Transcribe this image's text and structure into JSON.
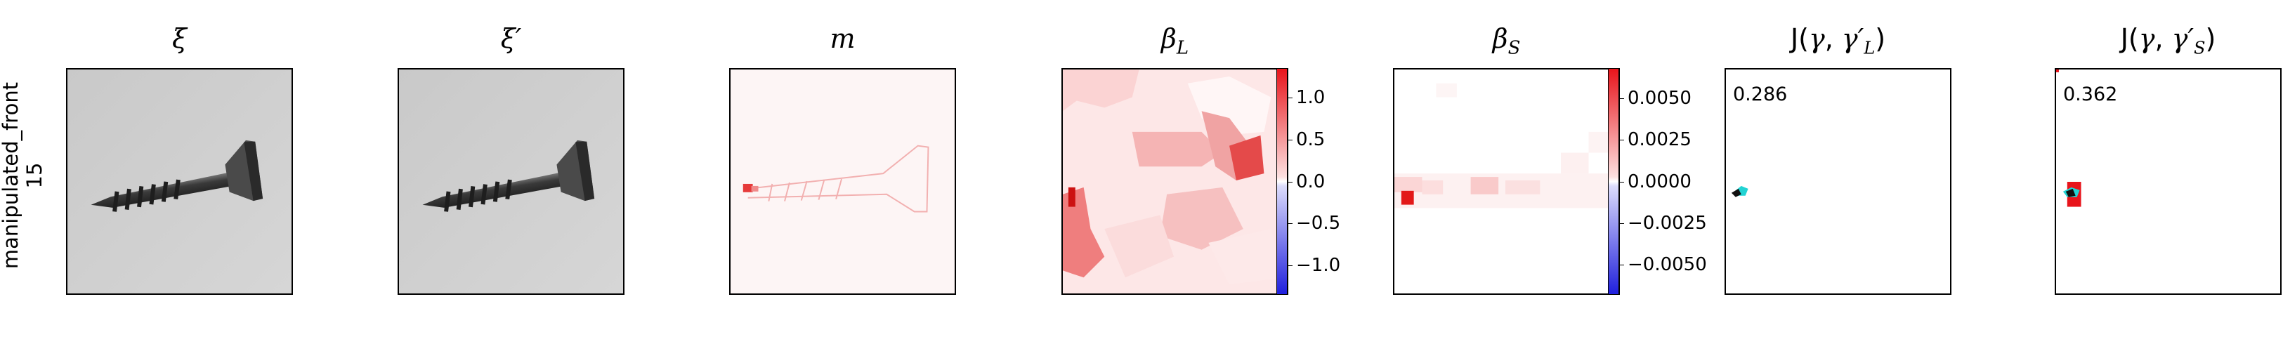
{
  "row_label": {
    "line1": "manipulated_front",
    "line2": "15"
  },
  "titles": {
    "xi": "ξ",
    "xi_prime": "ξ′",
    "m": "m",
    "beta_L": "βL",
    "beta_S": "βS",
    "J_L": "J(γ, γ′L)",
    "J_S": "J(γ, γ′S)"
  },
  "scores": {
    "J_L": "0.286",
    "J_S": "0.362"
  },
  "colorbar_L": {
    "ticks": [
      "1.0",
      "0.5",
      "0.0",
      "−0.5",
      "−1.0"
    ],
    "range": [
      -1.35,
      1.35
    ],
    "values": [
      1.0,
      0.5,
      0.0,
      -0.5,
      -1.0
    ]
  },
  "colorbar_S": {
    "ticks": [
      "0.0050",
      "0.0025",
      "0.0000",
      "−0.0025",
      "−0.0050"
    ],
    "range": [
      -0.0068,
      0.0068
    ],
    "values": [
      0.005,
      0.0025,
      0.0,
      -0.0025,
      -0.005
    ]
  },
  "colors": {
    "positive": "#e8141b",
    "negative": "#1f1fdd",
    "neutral": "#ffffff",
    "cyan": "#22d3d3"
  }
}
